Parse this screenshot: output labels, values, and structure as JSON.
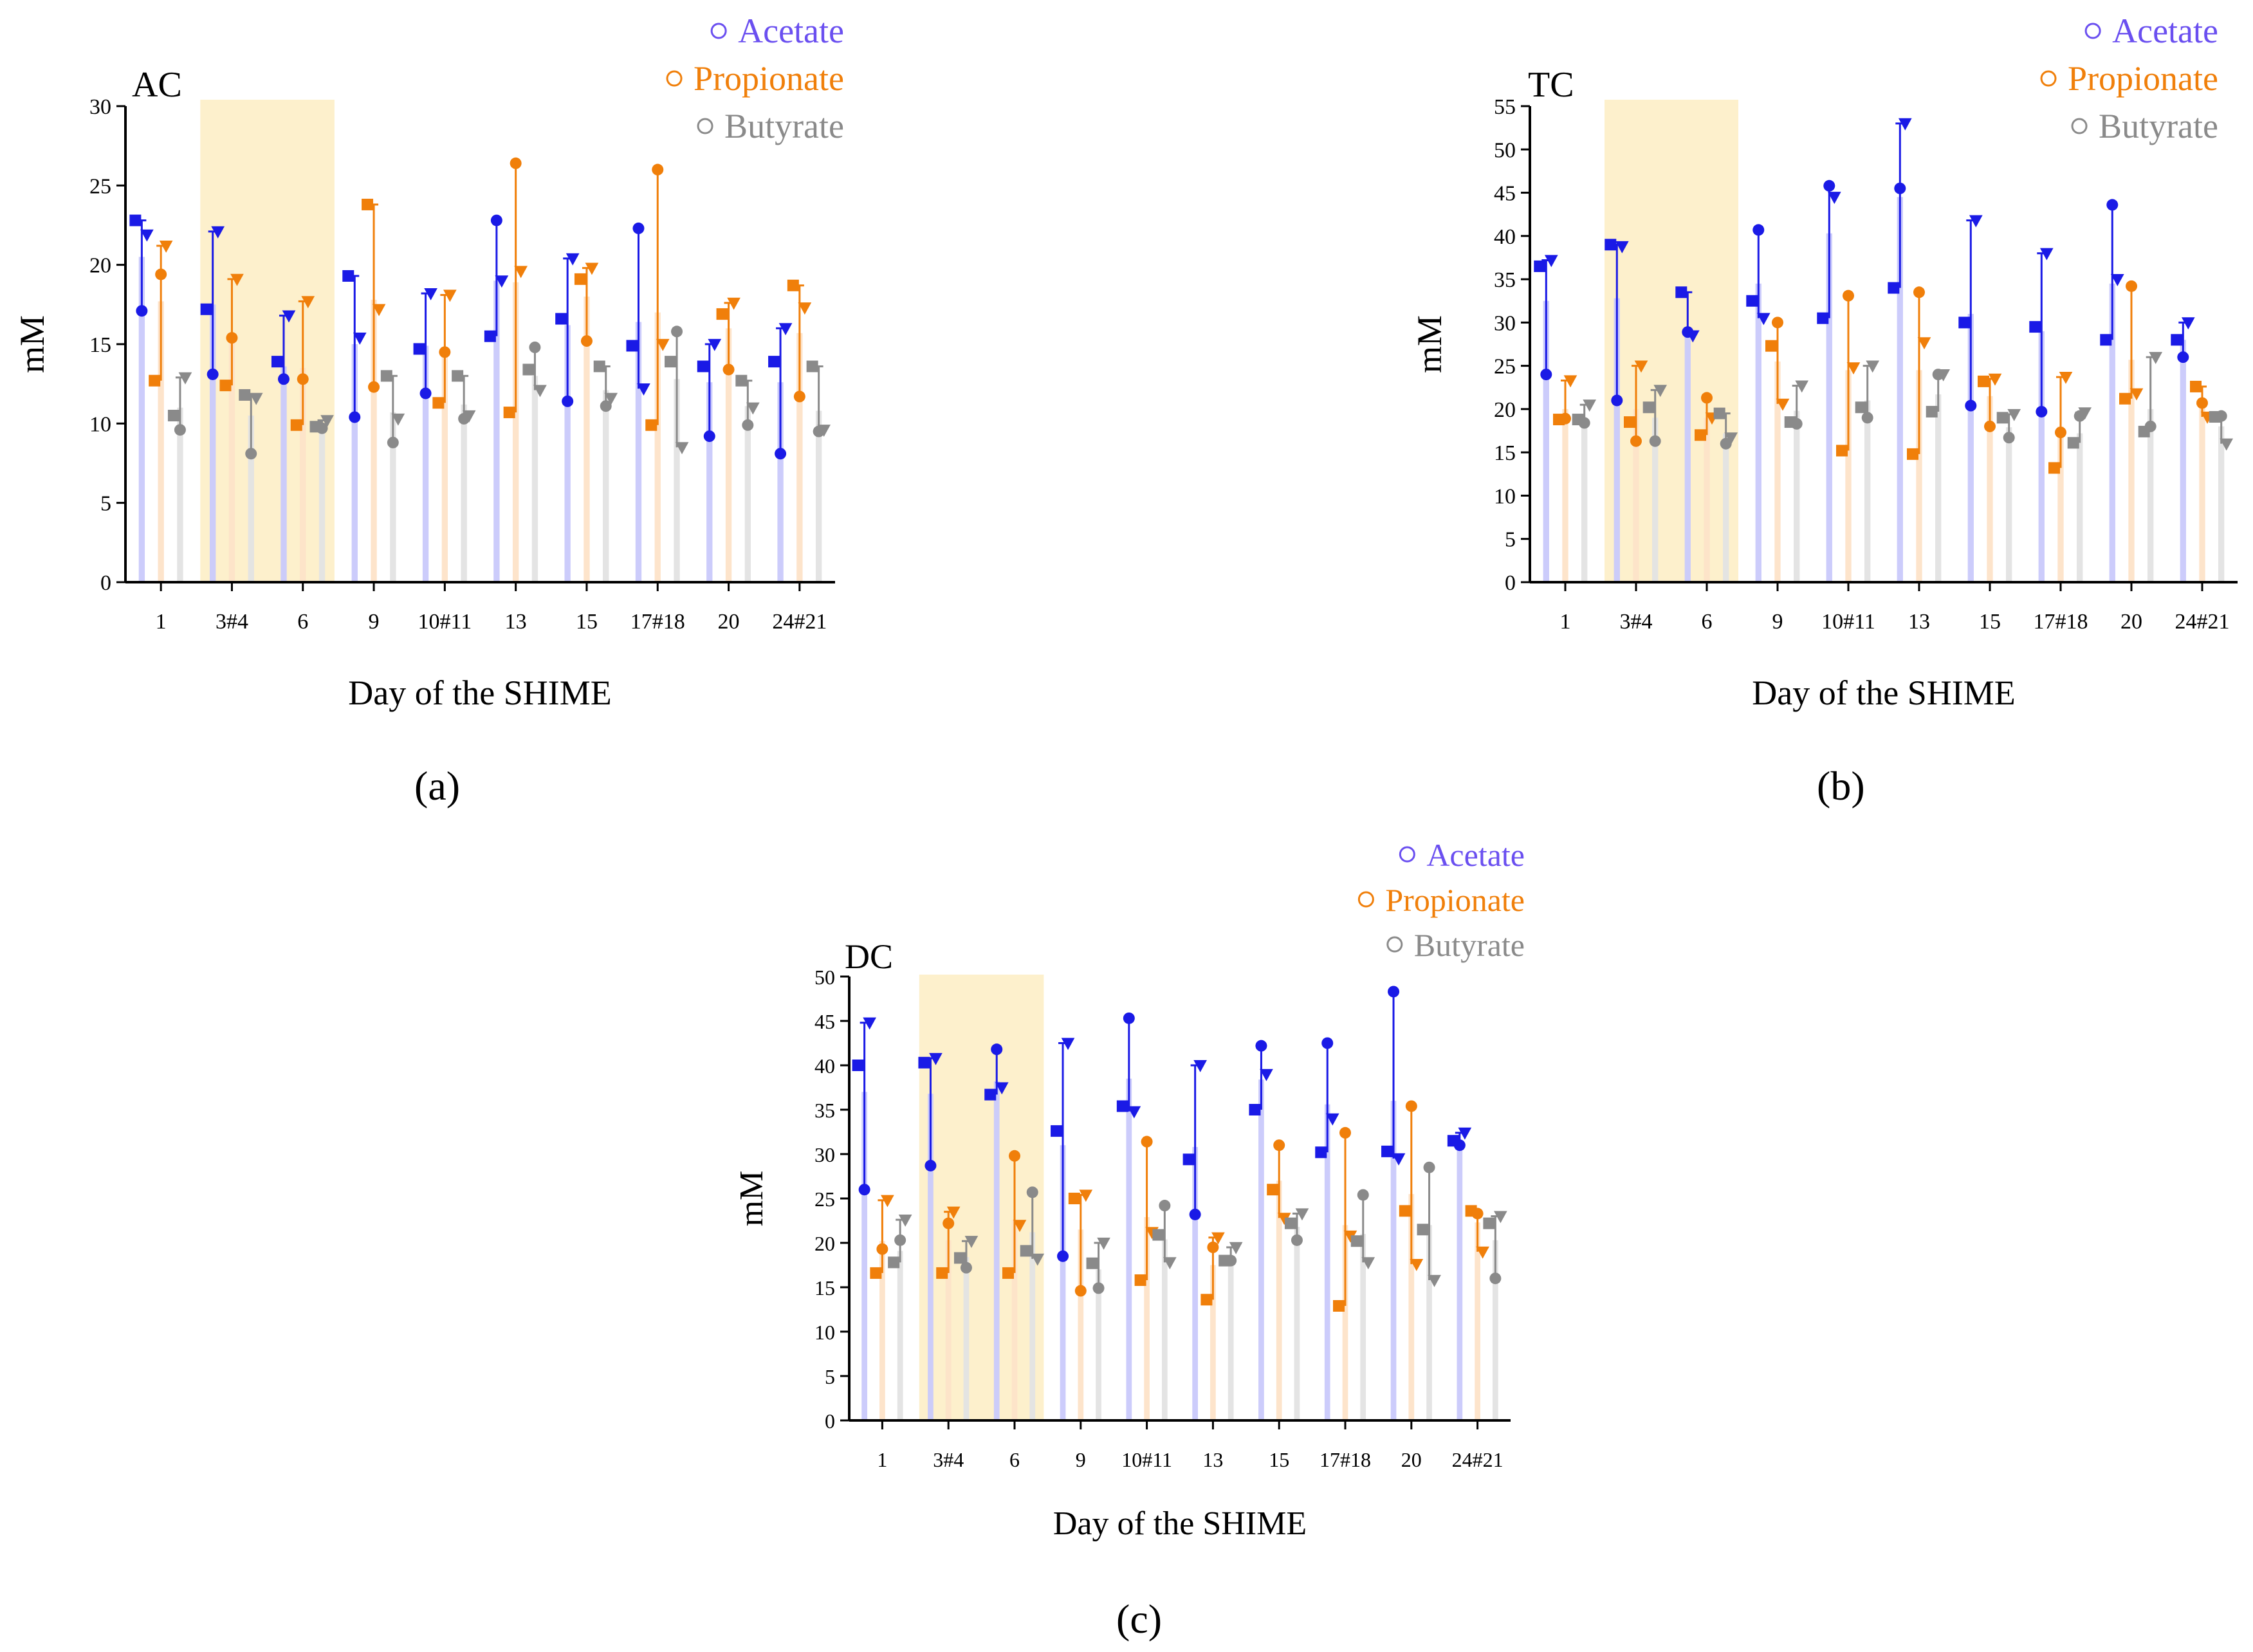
{
  "figure": {
    "captions": [
      "(a)",
      "(b)",
      "(c)"
    ]
  },
  "colors": {
    "acetate": "#1a1ae6",
    "acetate_bar": "#c9c9fb",
    "acetate_legend": "#6a4ff0",
    "propionate": "#f07f0a",
    "propionate_bar": "#fde3c8",
    "butyrate": "#8a8a8a",
    "butyrate_bar": "#e3e3e3",
    "highlight": "#fdf0cc"
  },
  "chart_data": [
    {
      "type": "bar",
      "panel": "AC",
      "title": "AC",
      "xlabel": "Day of the SHIME",
      "ylabel": "mM",
      "ylim": [
        0,
        30
      ],
      "yticks": [
        0,
        5,
        10,
        15,
        20,
        25,
        30
      ],
      "grid": false,
      "legend_position": "top-right",
      "highlight_range": [
        "3#4",
        "6"
      ],
      "categories": [
        "1",
        "3#4",
        "6",
        "9",
        "10#11",
        "13",
        "15",
        "17#18",
        "20",
        "24#21"
      ],
      "series": [
        {
          "name": "Acetate",
          "values": [
            20.5,
            17.5,
            13.6,
            15.0,
            14.9,
            19.0,
            16.2,
            16.4,
            12.6,
            12.6
          ],
          "points": [
            [
              22.8,
              21.9,
              17.1
            ],
            [
              17.2,
              22.1,
              13.1
            ],
            [
              13.9,
              16.8,
              12.8
            ],
            [
              19.3,
              15.4,
              10.4
            ],
            [
              14.7,
              18.2,
              11.9
            ],
            [
              15.5,
              19.0,
              22.8
            ],
            [
              16.6,
              20.4,
              11.4
            ],
            [
              14.9,
              12.2,
              22.3
            ],
            [
              13.6,
              15.0,
              9.2
            ],
            [
              13.9,
              16.0,
              8.1
            ]
          ]
        },
        {
          "name": "Propionate",
          "values": [
            17.7,
            15.6,
            13.5,
            17.8,
            14.6,
            18.9,
            18.0,
            17.0,
            16.0,
            15.7
          ],
          "points": [
            [
              12.7,
              21.2,
              19.4
            ],
            [
              12.4,
              19.1,
              15.4
            ],
            [
              9.9,
              17.7,
              12.8
            ],
            [
              23.8,
              17.2,
              12.3
            ],
            [
              11.3,
              18.1,
              14.5
            ],
            [
              10.7,
              19.6,
              26.4
            ],
            [
              19.1,
              19.8,
              15.2
            ],
            [
              9.9,
              15.0,
              26.0
            ],
            [
              16.9,
              17.6,
              13.4
            ],
            [
              18.7,
              17.3,
              11.7
            ]
          ]
        },
        {
          "name": "Butyrate",
          "values": [
            11.0,
            10.5,
            9.9,
            10.7,
            11.2,
            13.0,
            12.1,
            12.8,
            11.1,
            10.8
          ],
          "points": [
            [
              10.5,
              12.9,
              9.6
            ],
            [
              11.8,
              11.6,
              8.1
            ],
            [
              9.8,
              10.2,
              9.7
            ],
            [
              13.0,
              10.3,
              8.8
            ],
            [
              13.0,
              10.5,
              10.3
            ],
            [
              13.4,
              12.1,
              14.8
            ],
            [
              13.6,
              11.6,
              11.1
            ],
            [
              13.9,
              8.5,
              15.8
            ],
            [
              12.7,
              11.0,
              9.9
            ],
            [
              13.6,
              9.6,
              9.5
            ]
          ]
        }
      ]
    },
    {
      "type": "bar",
      "panel": "TC",
      "title": "TC",
      "xlabel": "Day of the SHIME",
      "ylabel": "mM",
      "ylim": [
        0,
        55
      ],
      "yticks": [
        0,
        5,
        10,
        15,
        20,
        25,
        30,
        35,
        40,
        45,
        50,
        55
      ],
      "grid": false,
      "legend_position": "top-right",
      "highlight_range": [
        "3#4",
        "6"
      ],
      "categories": [
        "1",
        "3#4",
        "6",
        "9",
        "10#11",
        "13",
        "15",
        "17#18",
        "20",
        "24#21"
      ],
      "series": [
        {
          "name": "Acetate",
          "values": [
            32.5,
            32.8,
            29.5,
            34.5,
            40.3,
            44.5,
            31.0,
            29.0,
            34.5,
            28.0
          ],
          "points": [
            [
              36.5,
              37.2,
              24.0
            ],
            [
              39.0,
              38.8,
              21.0
            ],
            [
              33.5,
              28.5,
              28.9
            ],
            [
              32.5,
              30.5,
              40.7
            ],
            [
              30.5,
              44.5,
              45.8
            ],
            [
              34.0,
              53.0,
              45.5
            ],
            [
              30.0,
              41.8,
              20.4
            ],
            [
              29.5,
              38.0,
              19.7
            ],
            [
              28.0,
              35.0,
              43.6
            ],
            [
              28.0,
              30.0,
              26.0
            ]
          ]
        },
        {
          "name": "Propionate",
          "values": [
            20.0,
            20.0,
            19.0,
            25.5,
            24.5,
            24.5,
            21.5,
            18.0,
            25.7,
            20.7
          ],
          "points": [
            [
              18.8,
              23.3,
              18.9
            ],
            [
              18.5,
              25.0,
              16.3
            ],
            [
              17.0,
              19.0,
              21.3
            ],
            [
              27.3,
              20.6,
              30.0
            ],
            [
              15.2,
              24.8,
              33.1
            ],
            [
              14.8,
              27.7,
              33.5
            ],
            [
              23.2,
              23.5,
              18.0
            ],
            [
              13.2,
              23.7,
              17.3
            ],
            [
              21.2,
              21.8,
              34.2
            ],
            [
              22.6,
              19.1,
              20.7
            ]
          ]
        },
        {
          "name": "Butyrate",
          "values": [
            18.7,
            19.0,
            17.2,
            19.8,
            21.0,
            21.7,
            17.9,
            17.2,
            20.0,
            18.0
          ],
          "points": [
            [
              18.8,
              20.5,
              18.4
            ],
            [
              20.2,
              22.2,
              16.3
            ],
            [
              19.5,
              16.7,
              16.0
            ],
            [
              18.5,
              22.7,
              18.3
            ],
            [
              20.2,
              25.0,
              19.0
            ],
            [
              19.7,
              24.0,
              24.0
            ],
            [
              19.0,
              19.4,
              16.7
            ],
            [
              16.1,
              19.6,
              19.2
            ],
            [
              17.4,
              26.0,
              18.0
            ],
            [
              19.1,
              16.0,
              19.2
            ]
          ]
        }
      ]
    },
    {
      "type": "bar",
      "panel": "DC",
      "title": "DC",
      "xlabel": "Day of the SHIME",
      "ylabel": "mM",
      "ylim": [
        0,
        50
      ],
      "yticks": [
        0,
        5,
        10,
        15,
        20,
        25,
        30,
        35,
        40,
        45,
        50
      ],
      "grid": false,
      "legend_position": "top-right",
      "highlight_range": [
        "3#4",
        "6"
      ],
      "categories": [
        "1",
        "3#4",
        "6",
        "9",
        "10#11",
        "13",
        "15",
        "17#18",
        "20",
        "24#21"
      ],
      "series": [
        {
          "name": "Acetate",
          "values": [
            37.0,
            36.8,
            38.2,
            31.0,
            38.5,
            30.8,
            38.4,
            35.6,
            36.0,
            31.5
          ],
          "points": [
            [
              40.0,
              44.8,
              26.0
            ],
            [
              40.3,
              40.8,
              28.7
            ],
            [
              36.7,
              37.5,
              41.8
            ],
            [
              32.6,
              42.5,
              18.5
            ],
            [
              35.4,
              34.8,
              45.3
            ],
            [
              29.4,
              40.0,
              23.2
            ],
            [
              35.0,
              39.0,
              42.2
            ],
            [
              30.2,
              34.0,
              42.5
            ],
            [
              30.3,
              29.5,
              48.3
            ],
            [
              31.5,
              32.4,
              31.0
            ]
          ]
        },
        {
          "name": "Propionate",
          "values": [
            20.2,
            20.3,
            22.6,
            21.5,
            22.9,
            17.5,
            27.0,
            22.0,
            25.5,
            22.3
          ],
          "points": [
            [
              16.6,
              24.8,
              19.3
            ],
            [
              16.6,
              23.5,
              22.2
            ],
            [
              16.6,
              22.0,
              29.8
            ],
            [
              25.0,
              25.4,
              14.6
            ],
            [
              15.8,
              21.2,
              31.4
            ],
            [
              13.6,
              20.6,
              19.5
            ],
            [
              26.0,
              22.8,
              31.0
            ],
            [
              12.9,
              20.8,
              32.4
            ],
            [
              23.6,
              17.6,
              35.4
            ],
            [
              23.6,
              19.0,
              23.3
            ]
          ]
        },
        {
          "name": "Butyrate",
          "values": [
            19.1,
            18.4,
            21.2,
            17.0,
            20.4,
            18.4,
            21.8,
            21.0,
            22.0,
            20.3
          ],
          "points": [
            [
              17.8,
              22.6,
              20.3
            ],
            [
              18.3,
              20.2,
              17.2
            ],
            [
              19.1,
              18.2,
              25.7
            ],
            [
              17.7,
              20.0,
              14.9
            ],
            [
              20.9,
              17.8,
              24.2
            ],
            [
              18.0,
              19.5,
              18.0
            ],
            [
              22.2,
              23.3,
              20.3
            ],
            [
              20.2,
              17.8,
              25.4
            ],
            [
              21.5,
              15.8,
              28.5
            ],
            [
              22.2,
              23.0,
              16.0
            ]
          ]
        }
      ]
    }
  ]
}
